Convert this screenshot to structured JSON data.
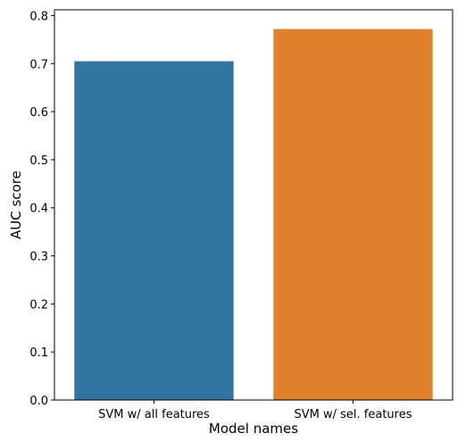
{
  "chart_data": {
    "type": "bar",
    "categories": [
      "SVM w/ all features",
      "SVM w/ sel. features"
    ],
    "values": [
      0.705,
      0.772
    ],
    "colors": [
      "#3274a1",
      "#e1812c"
    ],
    "title": "",
    "xlabel": "Model names",
    "ylabel": "AUC score",
    "ylim": [
      0,
      0.812
    ],
    "yticks": [
      0.0,
      0.1,
      0.2,
      0.3,
      0.4,
      0.5,
      0.6,
      0.7,
      0.8
    ],
    "ytick_labels": [
      "0.0",
      "0.1",
      "0.2",
      "0.3",
      "0.4",
      "0.5",
      "0.6",
      "0.7",
      "0.8"
    ],
    "grid": false,
    "legend": "none"
  }
}
